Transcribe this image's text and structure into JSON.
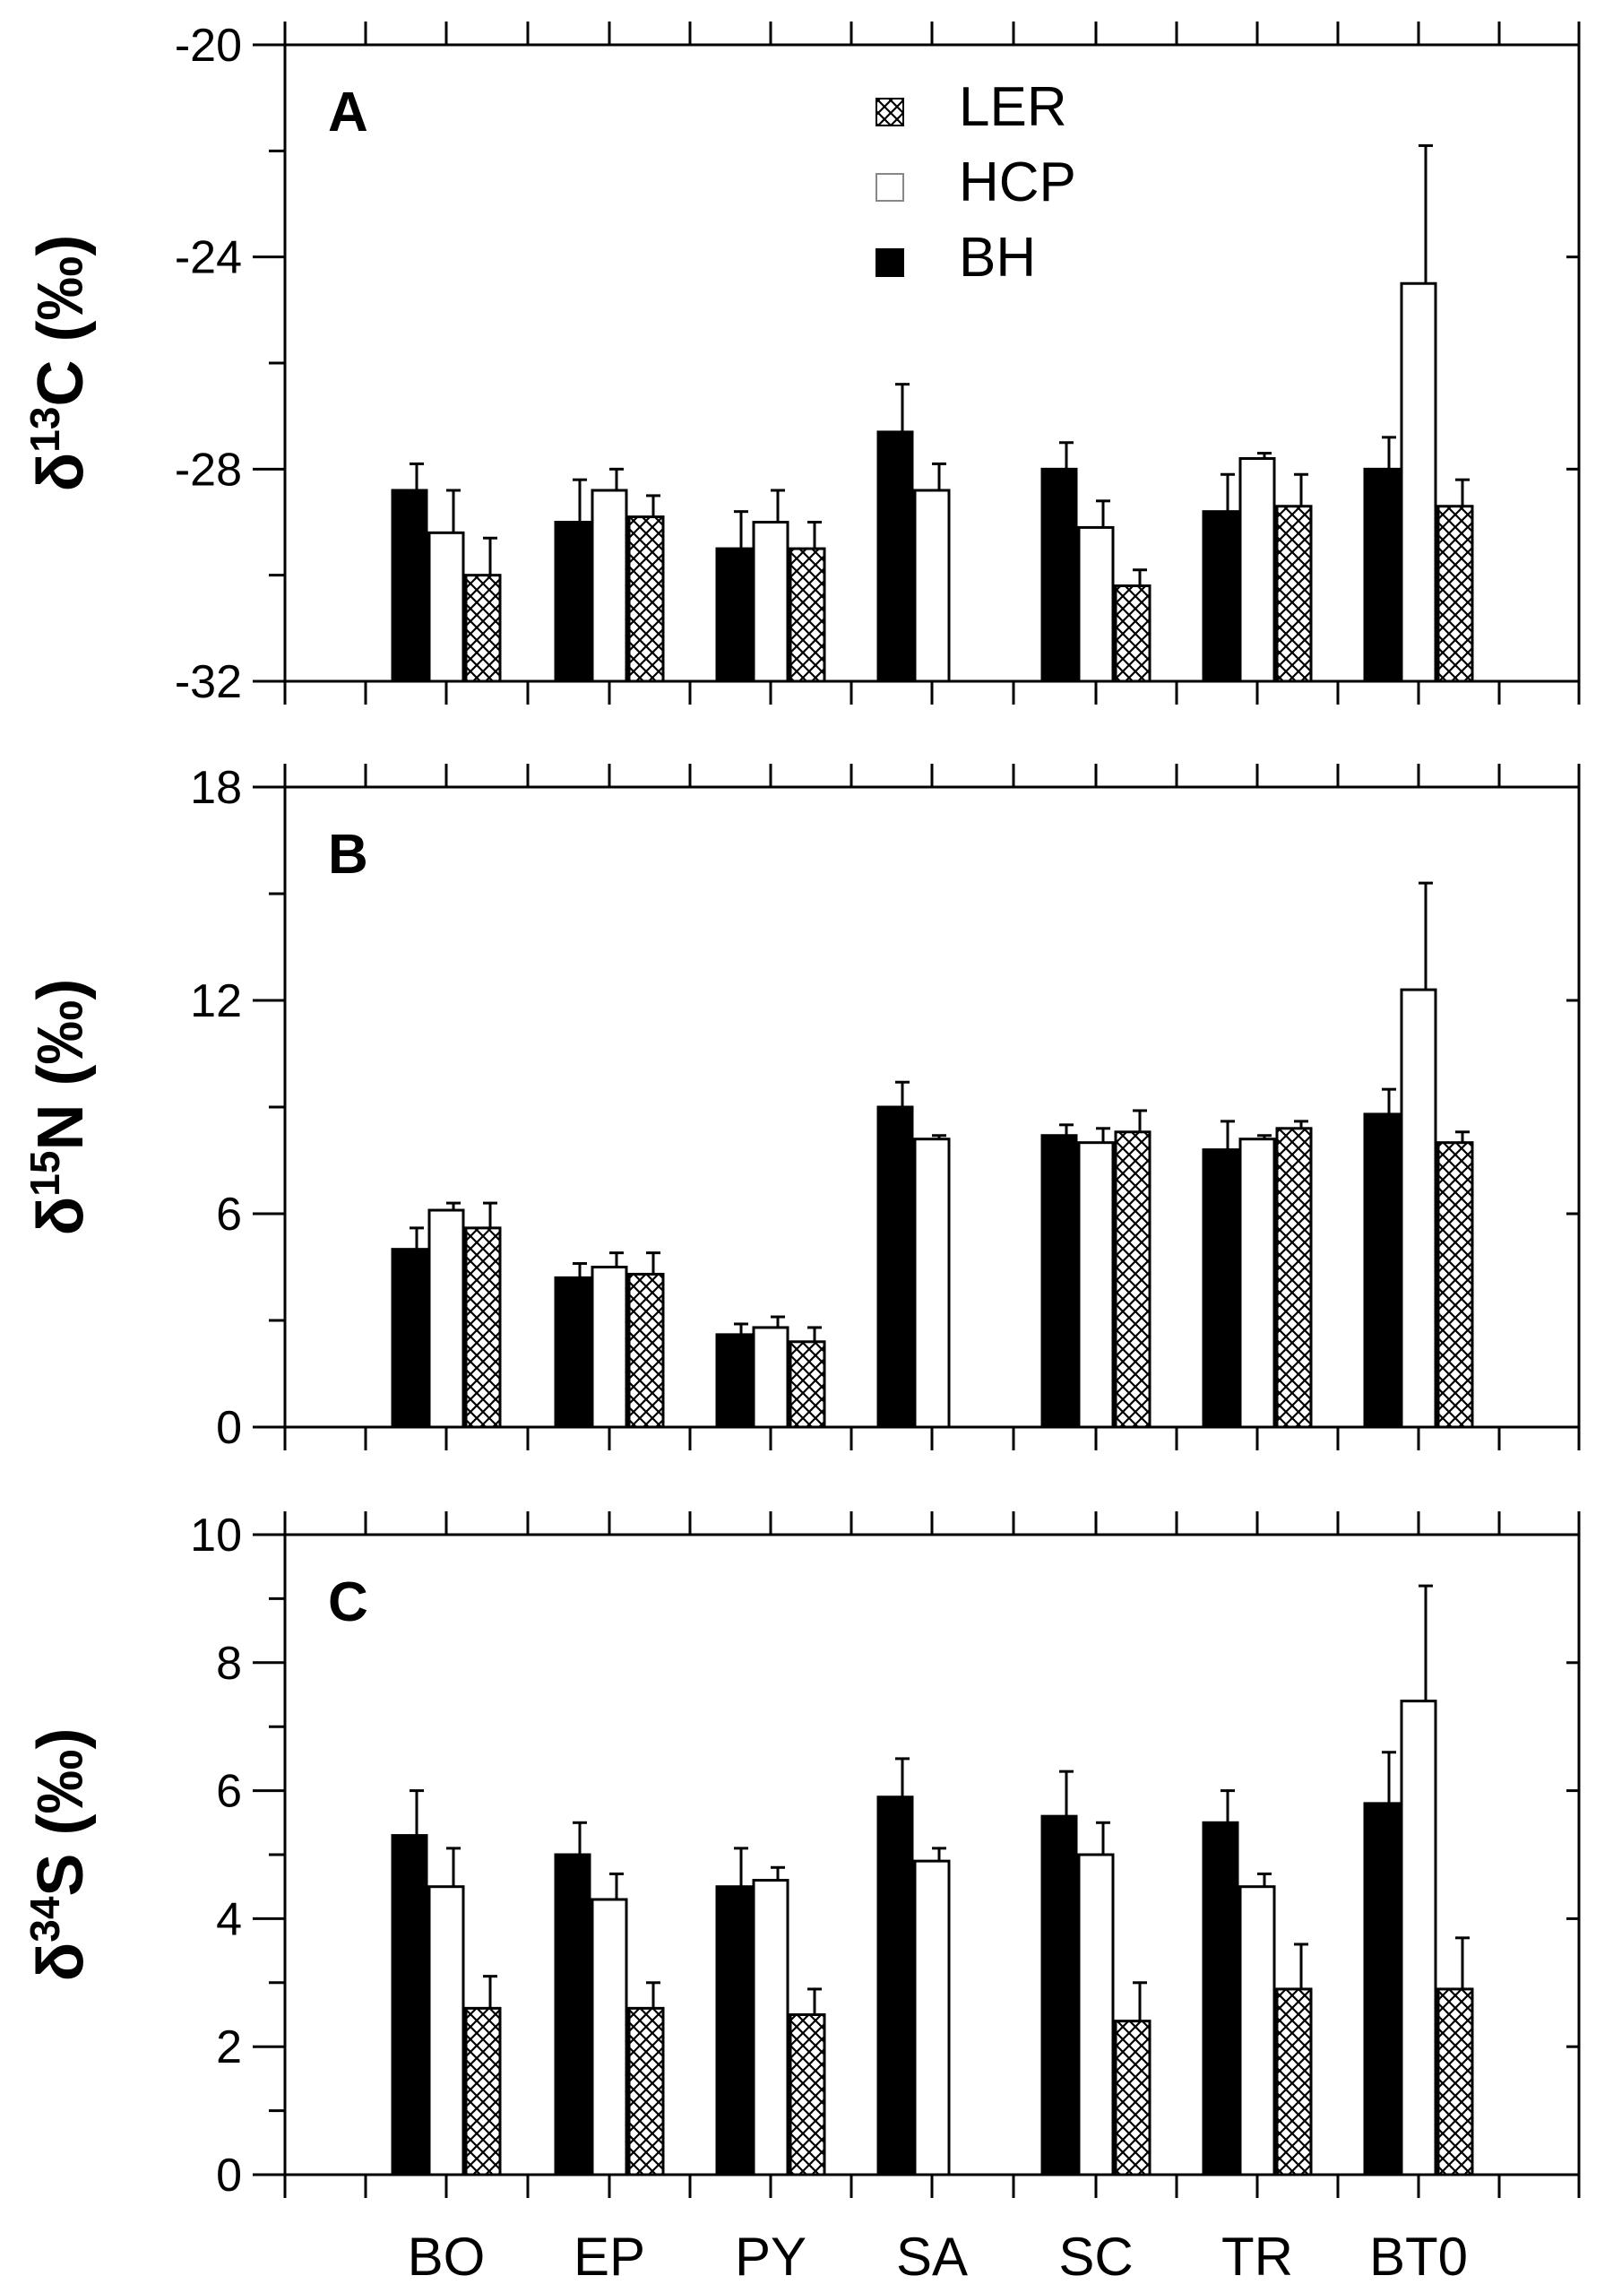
{
  "chart_data": [
    {
      "type": "bar",
      "panel_label": "A",
      "ylabel": {
        "prefix": "δ",
        "sup": "13",
        "main": "C (‰)"
      },
      "ylim": [
        -32,
        -20
      ],
      "yticks": [
        -32,
        -28,
        -24,
        -20
      ],
      "baseline": -32,
      "categories": [
        "BO",
        "EP",
        "PY",
        "SA",
        "SC",
        "TR",
        "BT0"
      ],
      "series": [
        {
          "name": "BH",
          "values": [
            -28.4,
            -29.0,
            -29.5,
            -27.3,
            -28.0,
            -28.8,
            -28.0
          ],
          "errors": [
            0.5,
            0.8,
            0.7,
            0.9,
            0.5,
            0.7,
            0.6
          ]
        },
        {
          "name": "HCP",
          "values": [
            -29.2,
            -28.4,
            -29.0,
            -28.4,
            -29.1,
            -27.8,
            -24.5
          ],
          "errors": [
            0.8,
            0.4,
            0.6,
            0.5,
            0.5,
            0.1,
            2.6
          ]
        },
        {
          "name": "LER",
          "values": [
            -30.0,
            -28.9,
            -29.5,
            null,
            -30.2,
            -28.7,
            -28.7
          ],
          "errors": [
            0.7,
            0.4,
            0.5,
            null,
            0.3,
            0.6,
            0.5
          ]
        }
      ],
      "legend": {
        "position": "top-center",
        "entries": [
          "LER",
          "HCP",
          "BH"
        ]
      }
    },
    {
      "type": "bar",
      "panel_label": "B",
      "ylabel": {
        "prefix": "δ",
        "sup": "15",
        "main": "N (‰)"
      },
      "ylim": [
        0,
        18
      ],
      "yticks": [
        0,
        6,
        12,
        18
      ],
      "baseline": 0,
      "categories": [
        "BO",
        "EP",
        "PY",
        "SA",
        "SC",
        "TR",
        "BT0"
      ],
      "series": [
        {
          "name": "BH",
          "values": [
            5.0,
            4.2,
            2.6,
            9.0,
            8.2,
            7.8,
            8.8
          ],
          "errors": [
            0.6,
            0.4,
            0.3,
            0.7,
            0.3,
            0.8,
            0.7
          ]
        },
        {
          "name": "HCP",
          "values": [
            6.1,
            4.5,
            2.8,
            8.1,
            8.0,
            8.1,
            12.3
          ],
          "errors": [
            0.2,
            0.4,
            0.3,
            0.1,
            0.4,
            0.1,
            3.0
          ]
        },
        {
          "name": "LER",
          "values": [
            5.6,
            4.3,
            2.4,
            null,
            8.3,
            8.4,
            8.0
          ],
          "errors": [
            0.7,
            0.6,
            0.4,
            null,
            0.6,
            0.2,
            0.3
          ]
        }
      ]
    },
    {
      "type": "bar",
      "panel_label": "C",
      "ylabel": {
        "prefix": "δ",
        "sup": "34",
        "main": "S (‰)"
      },
      "ylim": [
        0,
        10
      ],
      "yticks": [
        0,
        2,
        4,
        6,
        8,
        10
      ],
      "baseline": 0,
      "categories": [
        "BO",
        "EP",
        "PY",
        "SA",
        "SC",
        "TR",
        "BT0"
      ],
      "series": [
        {
          "name": "BH",
          "values": [
            5.3,
            5.0,
            4.5,
            5.9,
            5.6,
            5.5,
            5.8
          ],
          "errors": [
            0.7,
            0.5,
            0.6,
            0.6,
            0.7,
            0.5,
            0.8
          ]
        },
        {
          "name": "HCP",
          "values": [
            4.5,
            4.3,
            4.6,
            4.9,
            5.0,
            4.5,
            7.4
          ],
          "errors": [
            0.6,
            0.4,
            0.2,
            0.2,
            0.5,
            0.2,
            1.8
          ]
        },
        {
          "name": "LER",
          "values": [
            2.6,
            2.6,
            2.5,
            null,
            2.4,
            2.9,
            2.9
          ],
          "errors": [
            0.5,
            0.4,
            0.4,
            null,
            0.6,
            0.7,
            0.8
          ]
        }
      ]
    }
  ],
  "colors": {
    "BH": "#000000",
    "HCP": "#ffffff",
    "LER": "crosshatch"
  }
}
